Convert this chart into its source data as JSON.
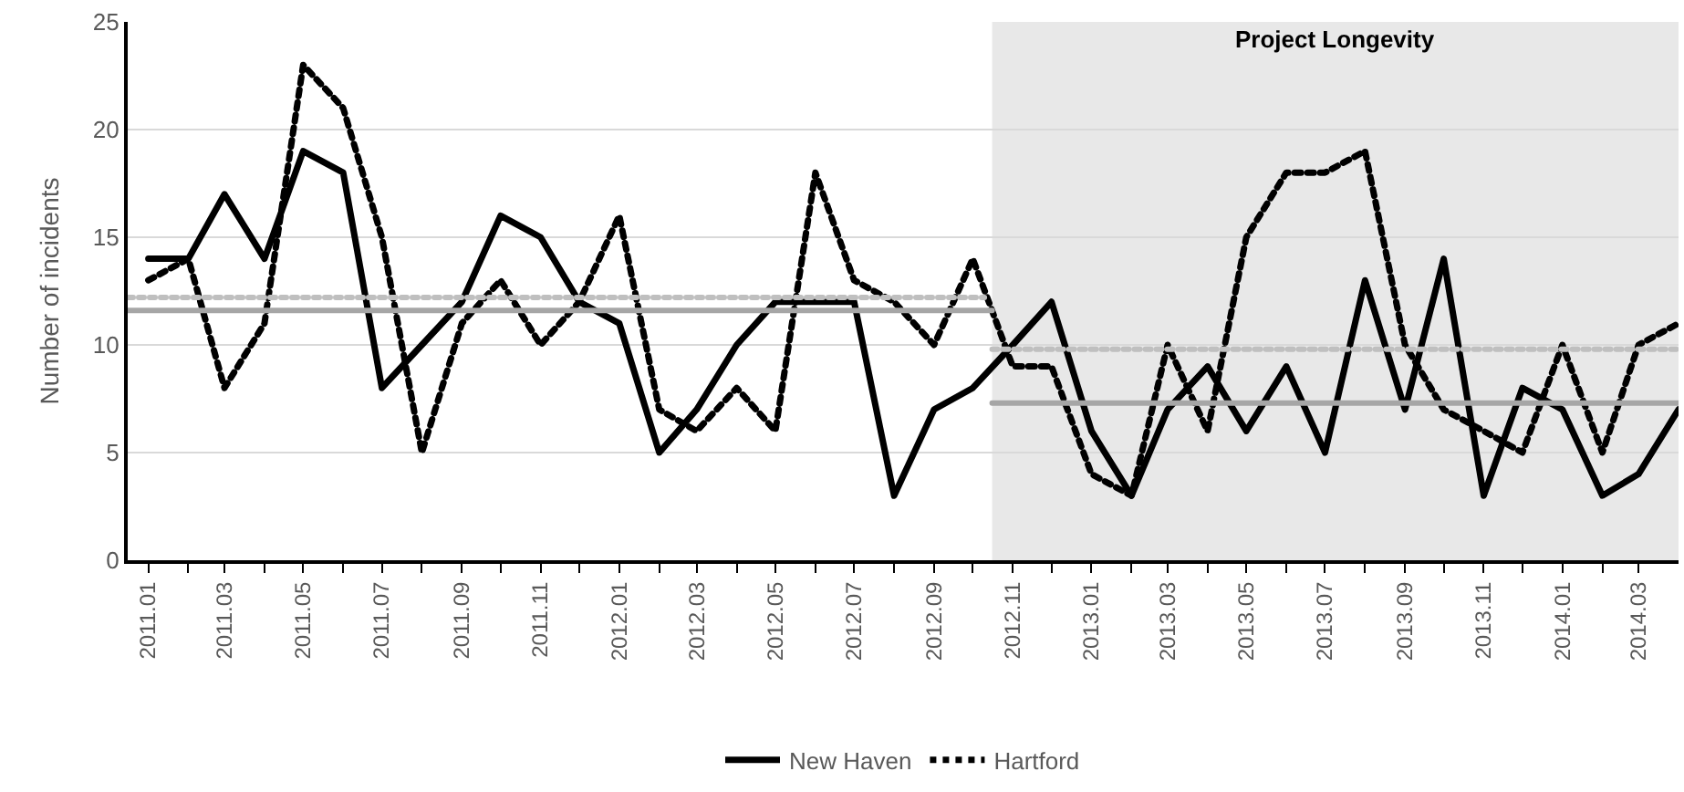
{
  "chart_data": {
    "type": "line",
    "ylabel": "Number of incidents",
    "x": [
      "2011-01",
      "2011-02",
      "2011-03",
      "2011-04",
      "2011-05",
      "2011-06",
      "2011-07",
      "2011-08",
      "2011-09",
      "2011-10",
      "2011-11",
      "2011-12",
      "2012-01",
      "2012-02",
      "2012-03",
      "2012-04",
      "2012-05",
      "2012-06",
      "2012-07",
      "2012-08",
      "2012-09",
      "2012-10",
      "2012-11",
      "2012-12",
      "2013-01",
      "2013-02",
      "2013-03",
      "2013-04",
      "2013-05",
      "2013-06",
      "2013-07",
      "2013-08",
      "2013-09",
      "2013-10",
      "2013-11",
      "2013-12",
      "2014-01",
      "2014-02",
      "2014-03",
      "2014-04"
    ],
    "series": [
      {
        "name": "New Haven",
        "color": "#000000",
        "line_style": "solid",
        "values": [
          14,
          14,
          17,
          14,
          19,
          18,
          8,
          10,
          12,
          16,
          15,
          12,
          11,
          5,
          7,
          10,
          12,
          12,
          12,
          3,
          7,
          8,
          10,
          12,
          6,
          3,
          7,
          9,
          6,
          9,
          5,
          13,
          7,
          14,
          3,
          8,
          7,
          3,
          4,
          7
        ]
      },
      {
        "name": "Hartford",
        "color": "#000000",
        "line_style": "dotted",
        "values": [
          13,
          14,
          8,
          11,
          23,
          21,
          15,
          5,
          11,
          13,
          10,
          12,
          16,
          7,
          6,
          8,
          6,
          18,
          13,
          12,
          10,
          14,
          9,
          9,
          4,
          3,
          10,
          6,
          15,
          18,
          18,
          19,
          10,
          7,
          6,
          5,
          10,
          5,
          10,
          11
        ]
      },
      {
        "color": "#a6a6a6",
        "line_style": "solid",
        "x": [
          "2010-12-16",
          "2012-10-16"
        ],
        "values": [
          11.6,
          11.6
        ]
      },
      {
        "color": "#bfbfbf",
        "line_style": "dotted",
        "x": [
          "2010-12-16",
          "2012-10-10"
        ],
        "values": [
          12.2,
          12.2
        ]
      },
      {
        "color": "#a6a6a6",
        "line_style": "solid",
        "x": [
          "2012-10-16",
          "2014-04-01"
        ],
        "values": [
          7.3,
          7.3
        ]
      },
      {
        "color": "#bfbfbf",
        "line_style": "dotted",
        "x": [
          "2012-10-16",
          "2014-04-01"
        ],
        "values": [
          9.8,
          9.8
        ]
      }
    ],
    "bands": [
      {
        "axis": "x",
        "from": "2012-10-16",
        "to": "2014-04-01",
        "label": "Project Longevity",
        "color": "#e8e8e8"
      }
    ],
    "xlim": [
      "2010-12-16",
      "2014-04-01"
    ],
    "xticks": [
      {
        "value": "2011-01",
        "label": "2011.01"
      },
      {
        "value": "2011-02",
        "label": null
      },
      {
        "value": "2011-03",
        "label": "2011.03"
      },
      {
        "value": "2011-04",
        "label": null
      },
      {
        "value": "2011-05",
        "label": "2011.05"
      },
      {
        "value": "2011-06",
        "label": null
      },
      {
        "value": "2011-07",
        "label": "2011.07"
      },
      {
        "value": "2011-08",
        "label": null
      },
      {
        "value": "2011-09",
        "label": "2011.09"
      },
      {
        "value": "2011-10",
        "label": null
      },
      {
        "value": "2011-11",
        "label": "2011.11"
      },
      {
        "value": "2011-12",
        "label": null
      },
      {
        "value": "2012-01",
        "label": "2012.01"
      },
      {
        "value": "2012-02",
        "label": null
      },
      {
        "value": "2012-03",
        "label": "2012.03"
      },
      {
        "value": "2012-04",
        "label": null
      },
      {
        "value": "2012-05",
        "label": "2012.05"
      },
      {
        "value": "2012-06",
        "label": null
      },
      {
        "value": "2012-07",
        "label": "2012.07"
      },
      {
        "value": "2012-08",
        "label": null
      },
      {
        "value": "2012-09",
        "label": "2012.09"
      },
      {
        "value": "2012-10",
        "label": null
      },
      {
        "value": "2012-11",
        "label": "2012.11"
      },
      {
        "value": "2012-12",
        "label": null
      },
      {
        "value": "2013-01",
        "label": "2013.01"
      },
      {
        "value": "2013-02",
        "label": null
      },
      {
        "value": "2013-03",
        "label": "2013.03"
      },
      {
        "value": "2013-04",
        "label": null
      },
      {
        "value": "2013-05",
        "label": "2013.05"
      },
      {
        "value": "2013-06",
        "label": null
      },
      {
        "value": "2013-07",
        "label": "2013.07"
      },
      {
        "value": "2013-08",
        "label": null
      },
      {
        "value": "2013-09",
        "label": "2013.09"
      },
      {
        "value": "2013-10",
        "label": null
      },
      {
        "value": "2013-11",
        "label": "2013.11"
      },
      {
        "value": "2013-12",
        "label": null
      },
      {
        "value": "2014-01",
        "label": "2014.01"
      },
      {
        "value": "2014-02",
        "label": null
      },
      {
        "value": "2014-03",
        "label": "2014.03"
      }
    ],
    "ylim": [
      0,
      25
    ],
    "yticks": [
      0,
      5,
      10,
      15,
      20,
      25
    ],
    "grid": "y",
    "legend": "bottom",
    "marker": "none"
  }
}
